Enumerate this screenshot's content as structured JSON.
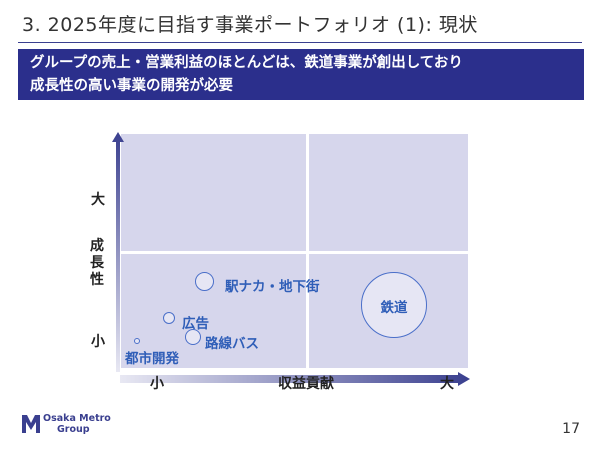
{
  "header": {
    "title": "3. 2025年度に目指す事業ポートフォリオ (1): 現状",
    "banner_lines": [
      "グループの売上・営業利益のほとんどは、鉄道事業が創出しており",
      "成長性の高い事業の開発が必要"
    ]
  },
  "matrix": {
    "y_axis": {
      "label": "成長性",
      "high": "大",
      "low": "小"
    },
    "x_axis": {
      "label": "収益貢献",
      "low": "小",
      "high": "大"
    },
    "bubbles": [
      {
        "label": "駅ナカ・地下街"
      },
      {
        "label": "鉄道"
      },
      {
        "label": "広告"
      },
      {
        "label": "路線バス"
      },
      {
        "label": "都市開発"
      }
    ]
  },
  "footer": {
    "logo_line1": "Osaka Metro",
    "logo_line2": "Group",
    "page_number": "17"
  },
  "colors": {
    "brand": "#2b2f8c",
    "quadrant": "#d6d6ec",
    "bubble_border": "#4a6fc9",
    "bubble_label": "#2f5eb8"
  }
}
